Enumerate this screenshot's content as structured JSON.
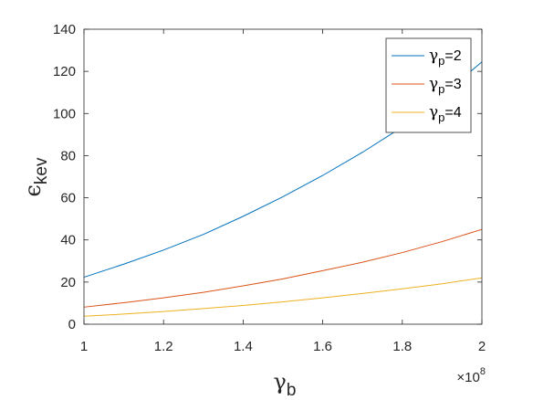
{
  "chart_data": {
    "type": "line",
    "xlabel": {
      "base": "γ",
      "sub": "b"
    },
    "ylabel": {
      "base": "ϵ",
      "sub": "kev"
    },
    "xlim": [
      100000000,
      200000000
    ],
    "ylim": [
      0,
      140
    ],
    "x_multiplier_label": {
      "base": "×10",
      "exp": "8"
    },
    "x_ticks": [
      100000000,
      120000000,
      140000000,
      160000000,
      180000000,
      200000000
    ],
    "x_tick_labels": [
      "1",
      "1.2",
      "1.4",
      "1.6",
      "1.8",
      "2"
    ],
    "y_ticks": [
      0,
      20,
      40,
      60,
      80,
      100,
      120,
      140
    ],
    "y_tick_labels": [
      "0",
      "20",
      "40",
      "60",
      "80",
      "100",
      "120",
      "140"
    ],
    "grid": false,
    "legend_position": "top-right",
    "x": [
      100000000,
      110000000,
      120000000,
      130000000,
      140000000,
      150000000,
      160000000,
      170000000,
      180000000,
      190000000,
      200000000
    ],
    "series": [
      {
        "name": {
          "base": "γ",
          "sub": "p",
          "suffix": "=2"
        },
        "color": "#0072BD",
        "values": [
          22.3,
          28.5,
          35.2,
          42.6,
          51.2,
          60.5,
          70.6,
          81.6,
          93.6,
          108.5,
          124.5
        ]
      },
      {
        "name": {
          "base": "γ",
          "sub": "p",
          "suffix": "=3"
        },
        "color": "#D95319",
        "values": [
          8.1,
          10.2,
          12.5,
          15.1,
          18.2,
          21.5,
          25.4,
          29.4,
          34.0,
          39.2,
          45.0
        ]
      },
      {
        "name": {
          "base": "γ",
          "sub": "p",
          "suffix": "=4"
        },
        "color": "#EDB120",
        "values": [
          3.8,
          4.8,
          6.0,
          7.4,
          8.9,
          10.6,
          12.5,
          14.6,
          16.8,
          19.2,
          22.0
        ]
      }
    ]
  }
}
